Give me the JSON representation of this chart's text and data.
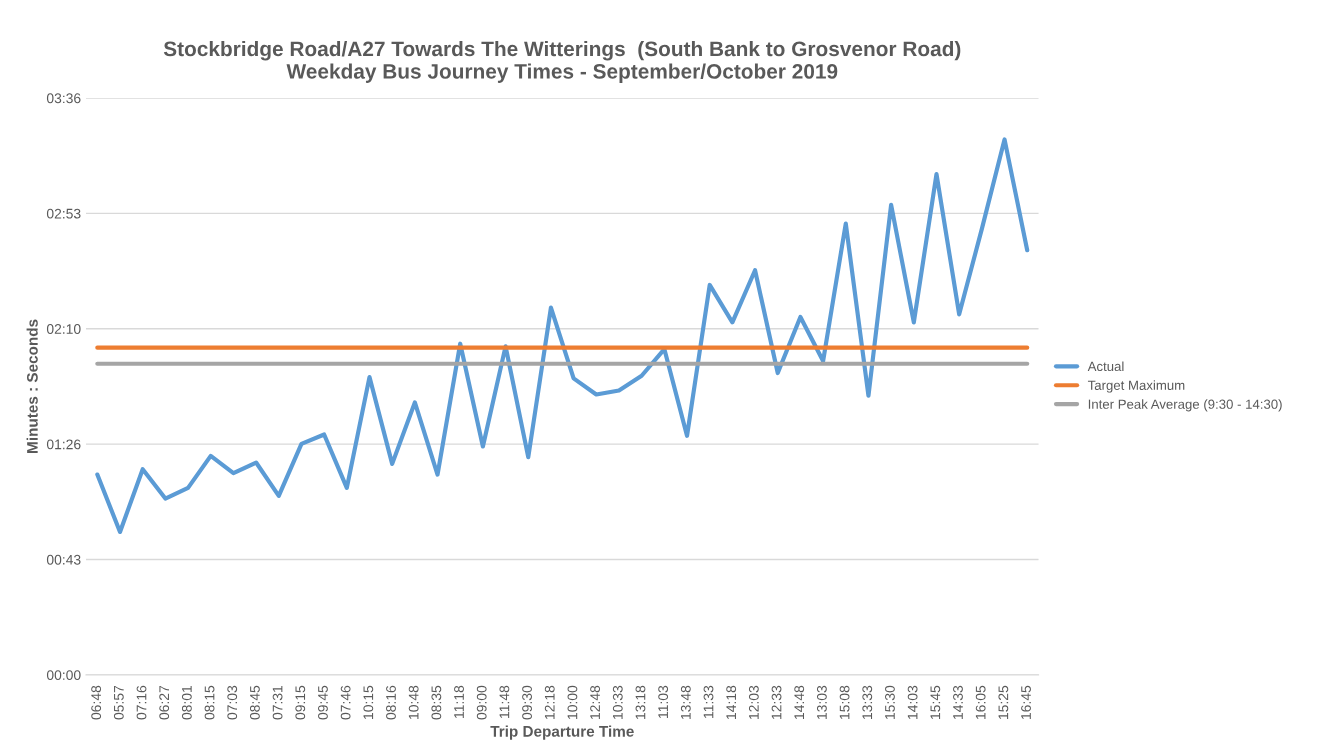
{
  "chart_data": {
    "type": "line",
    "title": "Stockbridge Road/A27 Towards The Witterings  (South Bank to Grosvenor Road)\nWeekday Bus Journey Times - September/October 2019",
    "xlabel": "Trip Departure Time",
    "ylabel": "Minutes : Seconds",
    "categories": [
      "06:48",
      "05:57",
      "07:16",
      "06:27",
      "08:01",
      "08:15",
      "07:03",
      "08:45",
      "07:31",
      "09:15",
      "09:45",
      "07:46",
      "10:15",
      "08:16",
      "10:48",
      "08:35",
      "11:18",
      "09:00",
      "11:48",
      "09:30",
      "12:18",
      "10:00",
      "12:48",
      "10:33",
      "13:18",
      "11:03",
      "13:48",
      "11:33",
      "14:18",
      "12:03",
      "12:33",
      "14:48",
      "13:03",
      "15:08",
      "13:33",
      "15:30",
      "14:03",
      "15:45",
      "14:33",
      "16:05",
      "15:25",
      "16:45"
    ],
    "series": [
      {
        "name": "Actual",
        "color": "#5b9bd5",
        "values": [
          75,
          53.5,
          77,
          66,
          70,
          82,
          75.5,
          79.5,
          67,
          86.5,
          90,
          70,
          111.5,
          79,
          102,
          75,
          124,
          85.5,
          123,
          81.5,
          137.5,
          111,
          105,
          106.5,
          112,
          122,
          89.5,
          146,
          132,
          151.5,
          113,
          134,
          117.5,
          169,
          104.5,
          176,
          132,
          187.5,
          135,
          167,
          200.5,
          159
        ]
      },
      {
        "name": "Target Maximum",
        "color": "#ed7d31",
        "values": [
          122.5,
          122.5,
          122.5,
          122.5,
          122.5,
          122.5,
          122.5,
          122.5,
          122.5,
          122.5,
          122.5,
          122.5,
          122.5,
          122.5,
          122.5,
          122.5,
          122.5,
          122.5,
          122.5,
          122.5,
          122.5,
          122.5,
          122.5,
          122.5,
          122.5,
          122.5,
          122.5,
          122.5,
          122.5,
          122.5,
          122.5,
          122.5,
          122.5,
          122.5,
          122.5,
          122.5,
          122.5,
          122.5,
          122.5,
          122.5,
          122.5,
          122.5
        ]
      },
      {
        "name": "Inter Peak Average (9:30 - 14:30)",
        "color": "#a5a5a5",
        "values": [
          116.5,
          116.5,
          116.5,
          116.5,
          116.5,
          116.5,
          116.5,
          116.5,
          116.5,
          116.5,
          116.5,
          116.5,
          116.5,
          116.5,
          116.5,
          116.5,
          116.5,
          116.5,
          116.5,
          116.5,
          116.5,
          116.5,
          116.5,
          116.5,
          116.5,
          116.5,
          116.5,
          116.5,
          116.5,
          116.5,
          116.5,
          116.5,
          116.5,
          116.5,
          116.5,
          116.5,
          116.5,
          116.5,
          116.5,
          116.5,
          116.5,
          116.5
        ]
      }
    ],
    "ylim": [
      0,
      216
    ],
    "yticks": [
      {
        "value": 0,
        "label": "00:00"
      },
      {
        "value": 43.2,
        "label": "00:43"
      },
      {
        "value": 86.4,
        "label": "01:26"
      },
      {
        "value": 129.6,
        "label": "02:10"
      },
      {
        "value": 172.8,
        "label": "02:53"
      },
      {
        "value": 216,
        "label": "03:36"
      }
    ],
    "grid": "y",
    "legend": "right",
    "marker": "none",
    "line_style": "solid"
  }
}
